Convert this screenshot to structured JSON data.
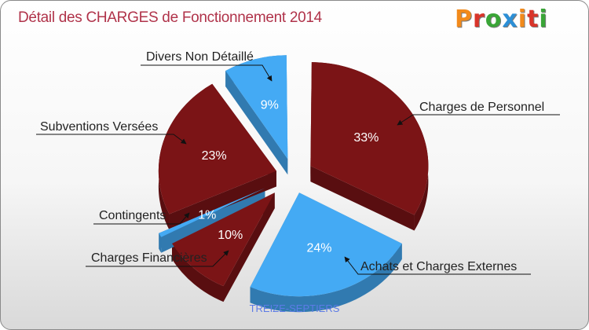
{
  "header": {
    "title": "Détail des CHARGES de Fonctionnement 2014"
  },
  "logo": {
    "text": "Proxiti",
    "colors": [
      "#f28a1b",
      "#d9352a",
      "#3aa537",
      "#2c8fd6",
      "#f28a1b",
      "#d9352a",
      "#3aa537"
    ]
  },
  "footer": {
    "commune": "TREIZE-SEPTIERS"
  },
  "chart_data": {
    "type": "pie",
    "title": "Détail des CHARGES de Fonctionnement 2014",
    "slices": [
      {
        "label": "Charges de Personnel",
        "value": 33,
        "pct_label": "33%",
        "color": "#7b1416"
      },
      {
        "label": "Achats et Charges Externes",
        "value": 24,
        "pct_label": "24%",
        "color": "#44aaf4"
      },
      {
        "label": "Charges Financières",
        "value": 10,
        "pct_label": "10%",
        "color": "#7b1416"
      },
      {
        "label": "Contingents",
        "value": 1,
        "pct_label": "1%",
        "color": "#44aaf4"
      },
      {
        "label": "Subventions Versées",
        "value": 23,
        "pct_label": "23%",
        "color": "#7b1416"
      },
      {
        "label": "Divers Non Détaillé",
        "value": 9,
        "pct_label": "9%",
        "color": "#44aaf4"
      }
    ]
  }
}
